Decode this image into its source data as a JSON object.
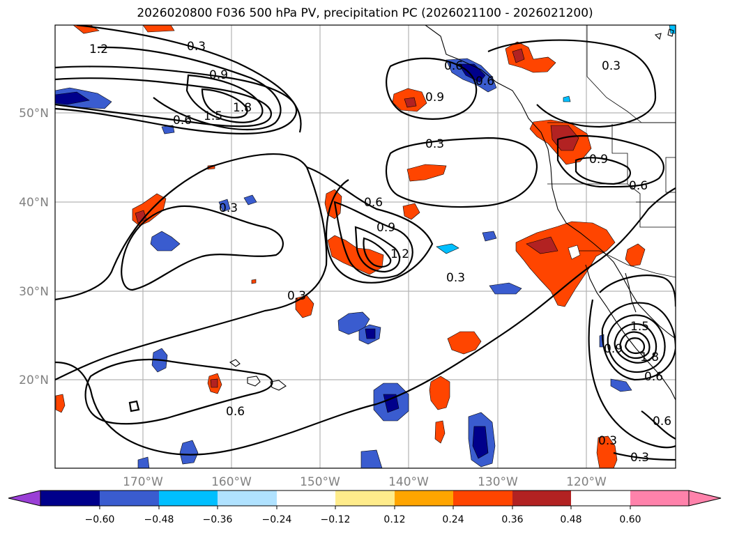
{
  "title": "2026020800 F036 500 hPa PV, precipitation PC (2026021100 - 2026021200)",
  "map": {
    "lon_ticks": [
      "170°W",
      "160°W",
      "150°W",
      "140°W",
      "130°W",
      "120°W"
    ],
    "lat_ticks": [
      "50°N",
      "40°N",
      "30°N",
      "20°N"
    ],
    "contour_labels": [
      "1.2",
      "0.3",
      "0.9",
      "1.5",
      "1.8",
      "0.6",
      "0.3",
      "0.6",
      "0.9",
      "1.2",
      "0.3",
      "0.9",
      "0.3",
      "0.6",
      "0.9",
      "0.6",
      "0.3",
      "1.5",
      "1.8",
      "0.9",
      "0.6",
      "0.6",
      "0.3",
      "0.3",
      "0.6",
      "0.3",
      "0.6"
    ]
  },
  "colorbar": {
    "colors": [
      "#9a3fd6",
      "#00008b",
      "#3a5ccf",
      "#00bfff",
      "#b0e2ff",
      "#ffffff",
      "#ffec8b",
      "#ffa500",
      "#ff4500",
      "#b22222",
      "#ff82ab"
    ],
    "tick_labels": [
      "−0.60",
      "−0.48",
      "−0.36",
      "−0.24",
      "−0.12",
      "0.12",
      "0.24",
      "0.36",
      "0.48",
      "0.60"
    ]
  }
}
